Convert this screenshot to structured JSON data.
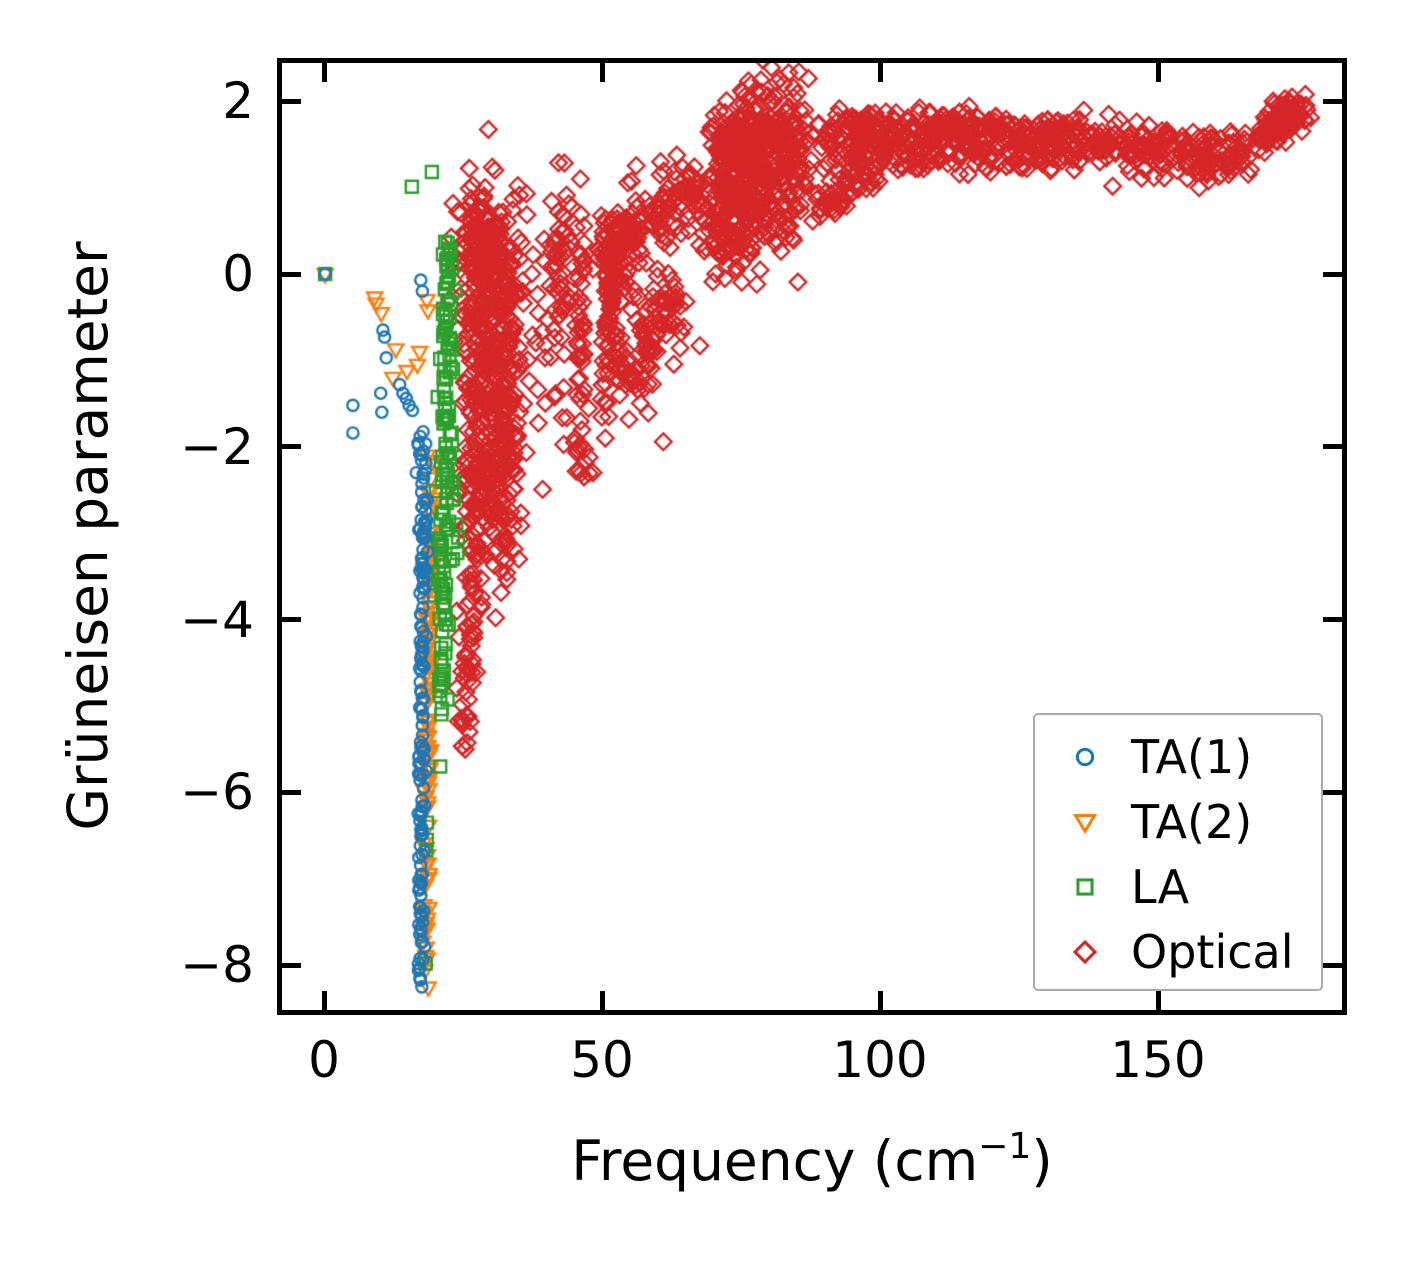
{
  "figure": {
    "title": "",
    "xticklabels": [
      "0",
      "50",
      "100",
      "150"
    ],
    "yticklabels": [
      "2",
      "0",
      "−2",
      "−4",
      "−6",
      "−8"
    ],
    "xlabel_prefix": "Frequency (cm",
    "xlabel_sup": "−1",
    "xlabel_suffix": ")",
    "ylabel": "Grüneisen parameter",
    "colors": {
      "background": "#ffffff",
      "spine": "#000000",
      "legend_border": "#aaaaaa",
      "ta1_blue": "#1f77b4",
      "ta2_orange": "#ff7f0e",
      "la_green": "#2ca02c",
      "optical_red": "#d62728"
    }
  },
  "legend": {
    "entries": [
      {
        "label": "TA(1)",
        "marker": "circle",
        "color": "#1f77b4"
      },
      {
        "label": "TA(2)",
        "marker": "triangle-down",
        "color": "#ff7f0e"
      },
      {
        "label": "LA",
        "marker": "square",
        "color": "#2ca02c"
      },
      {
        "label": "Optical",
        "marker": "diamond",
        "color": "#d62728"
      }
    ]
  },
  "chart_data": {
    "type": "scatter",
    "title": "",
    "xlabel": "Frequency (cm⁻¹)",
    "ylabel": "Grüneisen parameter",
    "xlim": [
      -8.5,
      184
    ],
    "ylim": [
      -8.6,
      2.5
    ],
    "xticks": [
      0,
      50,
      100,
      150
    ],
    "yticks": [
      2,
      0,
      -2,
      -4,
      -6,
      -8
    ],
    "grid": false,
    "legend_position": "lower right",
    "draw_order": [
      3,
      1,
      2,
      0
    ],
    "series": [
      {
        "name": "TA(1)",
        "marker": "circle",
        "color": "#1f77b4",
        "components": [
          {
            "type": "list",
            "pts": [
              [
                0.2,
                0.0
              ],
              [
                5.2,
                -1.52
              ],
              [
                5.2,
                -1.84
              ],
              [
                10.2,
                -1.38
              ],
              [
                10.4,
                -1.6
              ],
              [
                10.6,
                -0.65
              ],
              [
                10.9,
                -0.73
              ],
              [
                11.2,
                -0.97
              ],
              [
                13.6,
                -1.28
              ],
              [
                14.2,
                -1.38
              ],
              [
                14.8,
                -1.44
              ],
              [
                15.3,
                -1.52
              ],
              [
                15.9,
                -1.58
              ],
              [
                17.4,
                -0.07
              ],
              [
                17.7,
                -0.2
              ],
              [
                17.3,
                -1.88
              ],
              [
                16.9,
                -1.96
              ],
              [
                17.2,
                -2.08
              ],
              [
                16.6,
                -2.3
              ]
            ]
          },
          {
            "type": "strip",
            "n": 135,
            "pts": [
              [
                18.1,
                -2.25
              ],
              [
                17.9,
                -3.2
              ],
              [
                17.7,
                -4.2
              ],
              [
                17.6,
                -5.2
              ],
              [
                17.5,
                -6.2
              ],
              [
                17.4,
                -7.2
              ],
              [
                17.3,
                -8.1
              ]
            ],
            "sx": 0.32,
            "sy": 0.22
          },
          {
            "type": "gauss",
            "n": 20,
            "c": [
              17.8,
              -2.7
            ],
            "s": [
              0.45,
              0.4
            ]
          }
        ]
      },
      {
        "name": "TA(2)",
        "marker": "triangle-down",
        "color": "#ff7f0e",
        "components": [
          {
            "type": "list",
            "pts": [
              [
                0.2,
                0.0
              ],
              [
                9.1,
                -0.27
              ],
              [
                9.35,
                -0.34
              ],
              [
                10.3,
                -0.45
              ],
              [
                12.4,
                -1.2
              ],
              [
                12.9,
                -0.87
              ],
              [
                14.9,
                -1.12
              ],
              [
                16.8,
                -1.05
              ],
              [
                17.2,
                -0.9
              ],
              [
                18.5,
                -0.3
              ],
              [
                18.7,
                -0.42
              ],
              [
                18.6,
                -2.1
              ],
              [
                19.9,
                -2.2
              ]
            ]
          },
          {
            "type": "strip",
            "n": 115,
            "pts": [
              [
                19.3,
                -2.4
              ],
              [
                19.1,
                -3.4
              ],
              [
                18.9,
                -4.5
              ],
              [
                18.7,
                -5.6
              ],
              [
                18.5,
                -6.7
              ],
              [
                18.35,
                -7.6
              ],
              [
                18.3,
                -8.0
              ]
            ],
            "sx": 0.28,
            "sy": 0.25
          }
        ]
      },
      {
        "name": "LA",
        "marker": "square",
        "color": "#2ca02c",
        "components": [
          {
            "type": "list",
            "pts": [
              [
                0.2,
                0.0
              ],
              [
                15.8,
                1.01
              ],
              [
                19.4,
                1.18
              ],
              [
                20.9,
                -5.7
              ],
              [
                18.5,
                -6.35
              ],
              [
                18.5,
                -6.55
              ],
              [
                18.4,
                -6.67
              ],
              [
                18.3,
                -7.98
              ],
              [
                22.8,
                -0.35
              ],
              [
                23.2,
                -1.1
              ],
              [
                23.3,
                -2.4
              ],
              [
                23.8,
                -2.9
              ],
              [
                23.2,
                -3.3
              ],
              [
                24.1,
                -3.05
              ]
            ]
          },
          {
            "type": "strip",
            "n": 115,
            "pts": [
              [
                22.2,
                0.42
              ],
              [
                21.9,
                -0.6
              ],
              [
                21.7,
                -1.6
              ],
              [
                21.8,
                -2.6
              ],
              [
                21.5,
                -3.7
              ],
              [
                21.3,
                -4.6
              ],
              [
                21.1,
                -5.15
              ]
            ],
            "sx": 0.5,
            "sy": 0.28
          },
          {
            "type": "gauss",
            "n": 22,
            "c": [
              22.7,
              -1.8
            ],
            "s": [
              0.6,
              0.9
            ]
          }
        ]
      },
      {
        "name": "Optical",
        "marker": "diamond",
        "color": "#d62728",
        "components": [
          {
            "type": "gauss",
            "n": 300,
            "c": [
              29.5,
              -1.1
            ],
            "s": [
              3.0,
              1.0
            ]
          },
          {
            "type": "gauss",
            "n": 80,
            "c": [
              27.5,
              0.45
            ],
            "s": [
              2.2,
              0.28
            ]
          },
          {
            "type": "gauss",
            "n": 110,
            "c": [
              31.5,
              -0.25
            ],
            "s": [
              3.4,
              0.5
            ]
          },
          {
            "type": "gauss",
            "n": 90,
            "c": [
              29.5,
              -2.4
            ],
            "s": [
              2.4,
              0.55
            ]
          },
          {
            "type": "gauss",
            "n": 50,
            "c": [
              33.5,
              -2.1
            ],
            "s": [
              1.5,
              0.6
            ]
          },
          {
            "type": "strip",
            "n": 55,
            "pts": [
              [
                27.3,
                -3.0
              ],
              [
                26.7,
                -3.6
              ],
              [
                26.1,
                -4.3
              ],
              [
                25.7,
                -4.9
              ],
              [
                25.4,
                -5.4
              ]
            ],
            "sx": 0.7,
            "sy": 0.22
          },
          {
            "type": "list",
            "pts": [
              [
                25.4,
                -5.5
              ],
              [
                26.1,
                -5.3
              ],
              [
                24.8,
                -4.6
              ],
              [
                23.9,
                -3.9
              ],
              [
                24.3,
                -4.2
              ]
            ]
          },
          {
            "type": "strip",
            "n": 55,
            "pts": [
              [
                46.6,
                0.45
              ],
              [
                46.3,
                -0.5
              ],
              [
                46.0,
                -1.4
              ],
              [
                46.4,
                -2.1
              ]
            ],
            "sx": 0.6,
            "sy": 0.3
          },
          {
            "type": "list",
            "pts": [
              [
                48.4,
                -2.3
              ],
              [
                47.7,
                -2.12
              ],
              [
                50.6,
                -1.9
              ],
              [
                51.2,
                -1.65
              ]
            ]
          },
          {
            "type": "strip",
            "n": 45,
            "pts": [
              [
                52.3,
                0.35
              ],
              [
                51.3,
                -0.4
              ],
              [
                50.2,
                -1.2
              ]
            ],
            "sx": 0.4,
            "sy": 0.25
          },
          {
            "type": "strip",
            "n": 85,
            "pts": [
              [
                50.3,
                0.25
              ],
              [
                51.8,
                -0.45
              ],
              [
                53.8,
                -1.05
              ],
              [
                55.8,
                -1.35
              ],
              [
                57.8,
                -1.15
              ],
              [
                59.3,
                -0.7
              ],
              [
                59.9,
                -0.25
              ]
            ],
            "sx": 0.45,
            "sy": 0.26
          },
          {
            "type": "gauss",
            "n": 40,
            "c": [
              62.5,
              -0.5
            ],
            "s": [
              2.0,
              0.45
            ]
          },
          {
            "type": "gauss",
            "n": 30,
            "c": [
              55.5,
              0.0
            ],
            "s": [
              1.2,
              0.5
            ]
          },
          {
            "type": "strip",
            "n": 140,
            "pts": [
              [
                49.5,
                0.3
              ],
              [
                54,
                0.45
              ],
              [
                58,
                0.6
              ],
              [
                62,
                0.78
              ],
              [
                65.5,
                0.9
              ],
              [
                68,
                1.02
              ]
            ],
            "sx": 1.1,
            "sy": 0.2
          },
          {
            "type": "gauss",
            "n": 40,
            "c": [
              43,
              0.3
            ],
            "s": [
              1.6,
              0.45
            ]
          },
          {
            "type": "gauss",
            "n": 30,
            "c": [
              41.5,
              -0.7
            ],
            "s": [
              1.4,
              0.8
            ]
          },
          {
            "type": "strip",
            "n": 350,
            "pts": [
              [
                69.5,
                1.15
              ],
              [
                72.5,
                1.0
              ],
              [
                75.5,
                1.05
              ],
              [
                78.5,
                1.15
              ],
              [
                82,
                1.3
              ],
              [
                86,
                1.45
              ]
            ],
            "sx": 1.7,
            "sy": 0.5
          },
          {
            "type": "strip",
            "n": 130,
            "pts": [
              [
                71,
                1.6
              ],
              [
                75,
                1.58
              ],
              [
                79,
                1.62
              ],
              [
                83,
                1.58
              ]
            ],
            "sx": 1.6,
            "sy": 0.13
          },
          {
            "type": "gauss",
            "n": 70,
            "c": [
              73.5,
              0.68
            ],
            "s": [
              2.4,
              0.3
            ]
          },
          {
            "type": "list",
            "pts": [
              [
                69.3,
                0.5
              ],
              [
                70.4,
                0.32
              ],
              [
                71.7,
                0.2
              ],
              [
                73.1,
                0.27
              ],
              [
                75.2,
                0.12
              ],
              [
                77.1,
                0.3
              ],
              [
                78.4,
                0.48
              ],
              [
                67.7,
                0.66
              ],
              [
                66.8,
                0.9
              ]
            ]
          },
          {
            "type": "strip",
            "n": 60,
            "pts": [
              [
                89,
                0.75
              ],
              [
                93,
                0.95
              ],
              [
                97,
                1.15
              ],
              [
                100,
                1.25
              ]
            ],
            "sx": 0.8,
            "sy": 0.12
          },
          {
            "type": "strip",
            "n": 520,
            "pts": [
              [
                88,
                1.48
              ],
              [
                96,
                1.58
              ],
              [
                104,
                1.6
              ],
              [
                112,
                1.54
              ],
              [
                120,
                1.57
              ],
              [
                128,
                1.51
              ],
              [
                136,
                1.54
              ],
              [
                144,
                1.47
              ],
              [
                152,
                1.43
              ],
              [
                158,
                1.39
              ],
              [
                163,
                1.36
              ],
              [
                166,
                1.39
              ]
            ],
            "sx": 1.4,
            "sy": 0.15
          },
          {
            "type": "strip",
            "n": 100,
            "pts": [
              [
                92,
                1.74
              ],
              [
                100,
                1.77
              ],
              [
                108,
                1.71
              ],
              [
                116,
                1.73
              ],
              [
                124,
                1.69
              ],
              [
                132,
                1.65
              ]
            ],
            "sx": 1.5,
            "sy": 0.07
          },
          {
            "type": "strip",
            "n": 35,
            "pts": [
              [
                95,
                1.31
              ],
              [
                105,
                1.33
              ],
              [
                118,
                1.33
              ],
              [
                130,
                1.31
              ]
            ],
            "sx": 1.5,
            "sy": 0.07
          },
          {
            "type": "list",
            "pts": [
              [
                90.5,
                1.28
              ],
              [
                94.6,
                1.2
              ],
              [
                96.2,
                1.27
              ],
              [
                109,
                1.3
              ],
              [
                151,
                1.28
              ],
              [
                94,
                1.05
              ]
            ]
          },
          {
            "type": "strip",
            "n": 130,
            "pts": [
              [
                168.8,
                1.62
              ],
              [
                170.8,
                1.73
              ],
              [
                172.8,
                1.8
              ],
              [
                175.5,
                1.87
              ]
            ],
            "sx": 0.9,
            "sy": 0.1
          },
          {
            "type": "list",
            "pts": [
              [
                170.7,
                2.0
              ],
              [
                176.8,
                1.9
              ],
              [
                168.2,
                1.55
              ]
            ]
          }
        ]
      }
    ]
  }
}
